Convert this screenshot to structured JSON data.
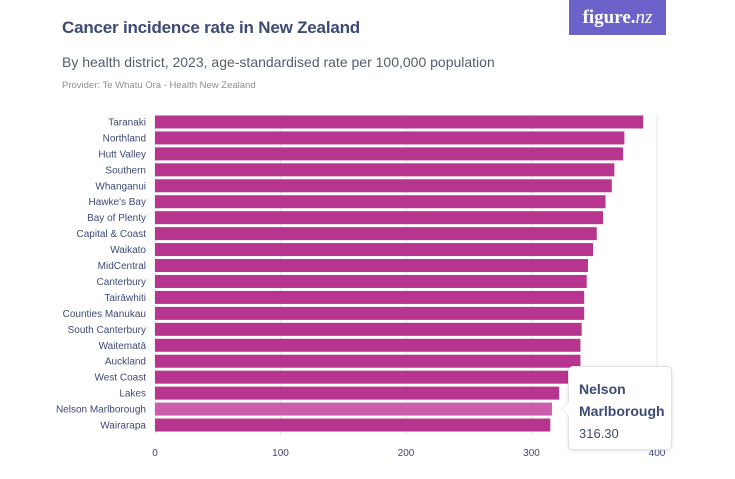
{
  "header": {
    "title": "Cancer incidence rate in New Zealand",
    "subtitle": "By health district, 2023, age-standardised rate per 100,000 population",
    "provider": "Provider: Te Whatu Ora - Health New Zealand"
  },
  "logo": {
    "text_main": "figure.",
    "text_accent": "nz"
  },
  "tooltip": {
    "name": "Nelson Marlborough",
    "value": "316.30"
  },
  "colors": {
    "bar": "#b8358f",
    "bar_highlight": "#cc5fad",
    "grid": "#e6e7eb",
    "text": "#3d4a75"
  },
  "chart_data": {
    "type": "bar",
    "orientation": "horizontal",
    "title": "Cancer incidence rate in New Zealand",
    "subtitle": "By health district, 2023, age-standardised rate per 100,000 population",
    "categories": [
      "Taranaki",
      "Northland",
      "Hutt Valley",
      "Southern",
      "Whanganui",
      "Hawke's Bay",
      "Bay of Plenty",
      "Capital & Coast",
      "Waikato",
      "MidCentral",
      "Canterbury",
      "Tairāwhiti",
      "Counties Manukau",
      "South Canterbury",
      "Waitematā",
      "Auckland",
      "West Coast",
      "Lakes",
      "Nelson Marlborough",
      "Wairarapa"
    ],
    "values": [
      389,
      374,
      373,
      366,
      364,
      359,
      357,
      352,
      349,
      345,
      344,
      342,
      342,
      340,
      339,
      339,
      337,
      322,
      316.3,
      315
    ],
    "highlighted": "Nelson Marlborough",
    "xlim": [
      0,
      400
    ],
    "xticks": [
      0,
      100,
      200,
      300,
      400
    ],
    "grid": true
  }
}
